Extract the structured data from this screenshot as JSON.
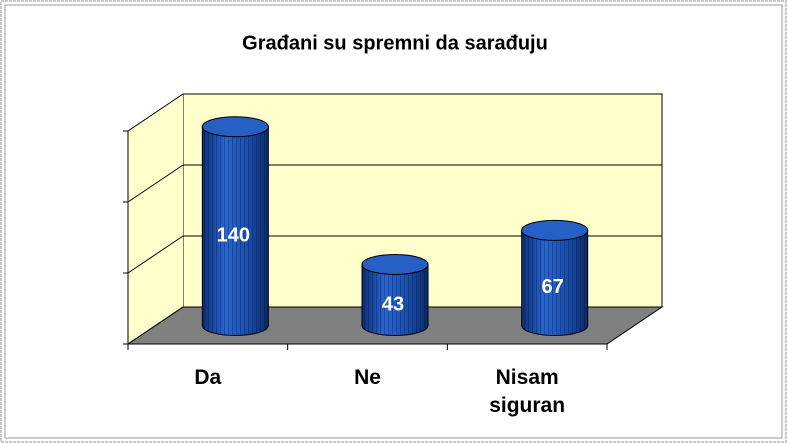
{
  "chart_data": {
    "type": "bar3d",
    "title": "Građani su spremni da sarađuju",
    "categories": [
      "Da",
      "Ne",
      "Nisam siguran"
    ],
    "values": [
      140,
      43,
      67
    ],
    "color": "#1f56b3",
    "ylim": [
      0,
      150
    ],
    "yticks": [
      0,
      50,
      100,
      150
    ],
    "grid": true
  }
}
